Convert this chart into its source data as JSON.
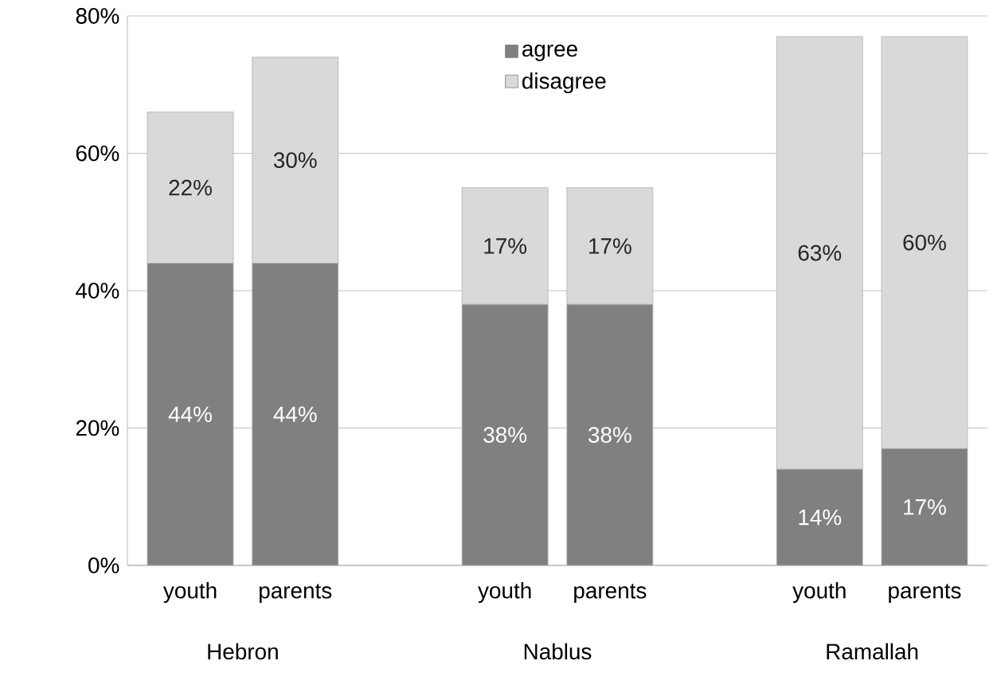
{
  "chart_data": {
    "type": "bar",
    "stacked": true,
    "categories": [
      "youth",
      "parents",
      null,
      "youth",
      "parents",
      null,
      "youth",
      "parents"
    ],
    "series": [
      {
        "name": "agree",
        "color": "#808080",
        "values": [
          44,
          44,
          null,
          38,
          38,
          null,
          14,
          17
        ],
        "value_labels": [
          "44%",
          "44%",
          null,
          "38%",
          "38%",
          null,
          "14%",
          "17%"
        ]
      },
      {
        "name": "disagree",
        "color": "#d9d9d9",
        "values": [
          22,
          30,
          null,
          17,
          17,
          null,
          63,
          60
        ],
        "value_labels": [
          "22%",
          "30%",
          null,
          "17%",
          "17%",
          null,
          "63%",
          "60%"
        ]
      }
    ],
    "annotations": [
      "Hebron",
      "Nablus",
      "Ramallah"
    ],
    "ylim": [
      0,
      80
    ],
    "yticks": [
      {
        "value": 0,
        "label": "0%"
      },
      {
        "value": 20,
        "label": "20%"
      },
      {
        "value": 40,
        "label": "40%"
      },
      {
        "value": 60,
        "label": "60%"
      },
      {
        "value": 80,
        "label": "80%"
      }
    ],
    "grid": "y",
    "legend": "top"
  }
}
